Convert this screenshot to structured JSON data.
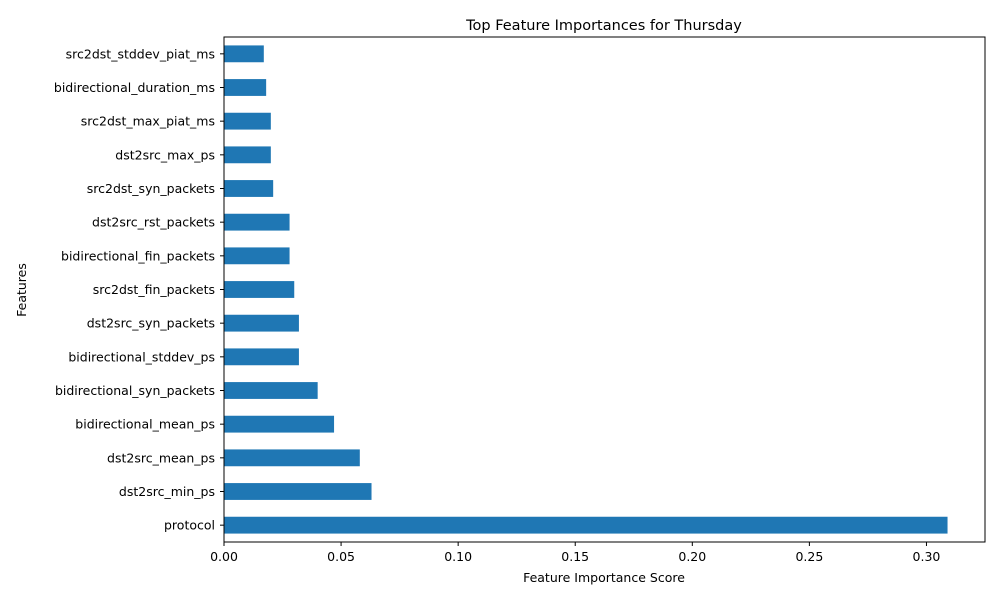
{
  "chart_data": {
    "type": "bar",
    "orientation": "horizontal",
    "title": "Top Feature Importances for Thursday",
    "xlabel": "Feature Importance Score",
    "ylabel": "Features",
    "xlim": [
      0.0,
      0.325
    ],
    "xticks": [
      "0.00",
      "0.05",
      "0.10",
      "0.15",
      "0.20",
      "0.25",
      "0.30"
    ],
    "grid": false,
    "bar_color": "#1f77b4",
    "categories": [
      "protocol",
      "dst2src_min_ps",
      "dst2src_mean_ps",
      "bidirectional_mean_ps",
      "bidirectional_syn_packets",
      "bidirectional_stddev_ps",
      "dst2src_syn_packets",
      "src2dst_fin_packets",
      "bidirectional_fin_packets",
      "dst2src_rst_packets",
      "src2dst_syn_packets",
      "dst2src_max_ps",
      "src2dst_max_piat_ms",
      "bidirectional_duration_ms",
      "src2dst_stddev_piat_ms"
    ],
    "values": [
      0.309,
      0.063,
      0.058,
      0.047,
      0.04,
      0.032,
      0.032,
      0.03,
      0.028,
      0.028,
      0.021,
      0.02,
      0.02,
      0.018,
      0.017
    ]
  }
}
